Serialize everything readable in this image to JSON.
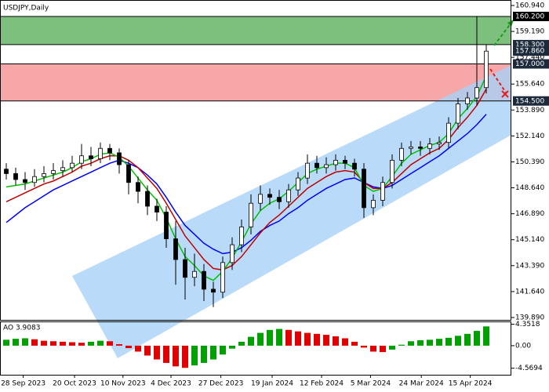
{
  "chart_data": [
    {
      "type": "candlestick",
      "title": "USDJPY,Daily",
      "categories": [
        null,
        null,
        null,
        null,
        null,
        null,
        null,
        null,
        null,
        null,
        null,
        null,
        null,
        null,
        null,
        null,
        null,
        null,
        null,
        null,
        null,
        null,
        null,
        null,
        null,
        null,
        null,
        null,
        null,
        null,
        null,
        null,
        null,
        null,
        null,
        null,
        null,
        null,
        null,
        null,
        null,
        null,
        null,
        null,
        null,
        null,
        null,
        null,
        null,
        null,
        null,
        null
      ],
      "open": [
        149.9,
        149.6,
        149.2,
        149.0,
        149.4,
        149.6,
        149.8,
        150.0,
        150.3,
        150.8,
        150.6,
        151.3,
        151.0,
        150.2,
        149.0,
        148.4,
        147.4,
        147.0,
        145.2,
        143.8,
        142.6,
        143.0,
        141.8,
        141.6,
        143.6,
        144.8,
        146.0,
        147.6,
        148.2,
        148.0,
        147.7,
        148.5,
        149.3,
        150.3,
        150.0,
        150.2,
        150.5,
        150.3,
        149.9,
        147.3,
        147.8,
        149.0,
        150.5,
        151.3,
        151.4,
        151.3,
        151.6,
        151.7,
        153.0,
        154.3,
        154.7,
        155.4
      ],
      "high": [
        150.3,
        150.0,
        149.7,
        149.9,
        150.1,
        150.3,
        150.5,
        150.8,
        151.6,
        151.4,
        151.7,
        151.6,
        151.3,
        150.5,
        149.4,
        148.8,
        147.9,
        147.4,
        146.4,
        144.6,
        144.2,
        143.5,
        142.3,
        144.0,
        145.3,
        146.5,
        148.2,
        148.8,
        148.6,
        148.5,
        148.9,
        149.7,
        150.9,
        150.8,
        150.7,
        150.9,
        150.8,
        150.6,
        150.3,
        148.2,
        149.4,
        150.9,
        151.7,
        151.8,
        151.8,
        152.0,
        152.1,
        153.4,
        154.7,
        155.1,
        160.2,
        158.3
      ],
      "low": [
        149.2,
        148.8,
        148.5,
        148.7,
        149.0,
        149.2,
        149.4,
        149.7,
        149.9,
        150.1,
        150.3,
        150.5,
        149.6,
        148.2,
        147.6,
        146.8,
        146.4,
        144.6,
        142.1,
        141.1,
        142.0,
        141.0,
        140.6,
        141.2,
        143.1,
        144.3,
        145.5,
        147.1,
        147.5,
        147.2,
        147.3,
        148.1,
        148.9,
        149.6,
        149.6,
        149.8,
        149.9,
        149.4,
        146.6,
        146.8,
        147.4,
        148.6,
        150.1,
        150.9,
        150.8,
        150.9,
        151.2,
        151.3,
        152.6,
        153.9,
        154.2,
        155.0
      ],
      "close": [
        149.6,
        149.2,
        149.0,
        149.4,
        149.6,
        149.8,
        150.0,
        150.3,
        150.8,
        150.6,
        151.3,
        151.0,
        150.2,
        149.0,
        148.4,
        147.4,
        147.0,
        145.2,
        143.8,
        142.6,
        143.0,
        141.8,
        141.6,
        143.6,
        144.8,
        146.0,
        147.6,
        148.2,
        148.0,
        147.7,
        148.5,
        149.3,
        150.3,
        150.0,
        150.2,
        150.5,
        150.3,
        149.9,
        147.3,
        147.8,
        149.0,
        150.5,
        151.3,
        151.4,
        151.3,
        151.6,
        151.7,
        153.0,
        154.3,
        154.7,
        155.4,
        157.86
      ],
      "up_color": "#ffffff",
      "down_color": "#000000",
      "series": [
        {
          "color": "#0000ff",
          "values": [
            146.3,
            146.8,
            147.3,
            147.7,
            148.1,
            148.5,
            148.8,
            149.1,
            149.4,
            149.7,
            150.0,
            150.3,
            150.5,
            150.3,
            150.0,
            149.5,
            148.9,
            148.0,
            147.0,
            146.1,
            145.5,
            144.9,
            144.5,
            144.2,
            144.3,
            144.6,
            145.1,
            145.7,
            146.1,
            146.4,
            146.9,
            147.3,
            147.8,
            148.2,
            148.6,
            148.9,
            149.2,
            149.3,
            149.0,
            148.7,
            148.6,
            148.8,
            149.2,
            149.6,
            150.0,
            150.4,
            150.8,
            151.3,
            151.8,
            152.3,
            152.9,
            153.6
          ]
        },
        {
          "color": "#c00000",
          "values": [
            147.7,
            148.0,
            148.3,
            148.6,
            148.9,
            149.1,
            149.4,
            149.7,
            150.1,
            150.3,
            150.6,
            150.8,
            150.8,
            150.5,
            150.0,
            149.3,
            148.6,
            147.6,
            146.5,
            145.4,
            144.6,
            143.8,
            143.2,
            143.1,
            143.4,
            144.0,
            144.8,
            145.6,
            146.3,
            146.8,
            147.4,
            148.0,
            148.6,
            149.0,
            149.4,
            149.7,
            149.8,
            149.7,
            149.0,
            148.6,
            148.6,
            149.0,
            149.6,
            150.2,
            150.6,
            151.0,
            151.3,
            151.9,
            152.7,
            153.4,
            154.2,
            155.3
          ]
        },
        {
          "color": "#00c000",
          "values": [
            148.7,
            148.8,
            148.9,
            149.1,
            149.3,
            149.5,
            149.7,
            150.0,
            150.4,
            150.6,
            150.9,
            151.0,
            150.7,
            150.1,
            149.3,
            148.5,
            147.8,
            146.6,
            145.2,
            144.0,
            143.4,
            142.7,
            142.4,
            143.0,
            143.9,
            145.0,
            146.2,
            147.1,
            147.6,
            147.9,
            148.4,
            149.0,
            149.6,
            149.9,
            150.1,
            150.3,
            150.3,
            150.0,
            148.8,
            148.4,
            148.6,
            149.4,
            150.3,
            150.9,
            151.2,
            151.5,
            151.7,
            152.3,
            153.3,
            154.0,
            154.8,
            156.2
          ]
        }
      ],
      "ylim": [
        139.89,
        160.94
      ],
      "yticks": [
        {
          "value": 160.94,
          "label": "160.940"
        },
        {
          "value": 159.19,
          "label": "159.190"
        },
        {
          "value": 157.44,
          "label": "157.440"
        },
        {
          "value": 155.64,
          "label": "155.640"
        },
        {
          "value": 153.89,
          "label": "153.890"
        },
        {
          "value": 152.14,
          "label": "152.140"
        },
        {
          "value": 150.39,
          "label": "150.390"
        },
        {
          "value": 148.64,
          "label": "148.640"
        },
        {
          "value": 146.89,
          "label": "146.890"
        },
        {
          "value": 145.14,
          "label": "145.140"
        },
        {
          "value": 143.39,
          "label": "143.390"
        },
        {
          "value": 141.64,
          "label": "141.640"
        },
        {
          "value": 139.89,
          "label": "139.890"
        }
      ],
      "xticks": [
        {
          "value": 1.8,
          "label": "28 Sep 2023"
        },
        {
          "value": 7.25,
          "label": "20 Oct 2023"
        },
        {
          "value": 12.4,
          "label": "10 Nov 2023"
        },
        {
          "value": 17.5,
          "label": "4 Dec 2023"
        },
        {
          "value": 22.8,
          "label": "27 Dec 2023"
        },
        {
          "value": 28.25,
          "label": "19 Jan 2024"
        },
        {
          "value": 33.5,
          "label": "12 Feb 2024"
        },
        {
          "value": 38.7,
          "label": "5 Mar 2024"
        },
        {
          "value": 44.1,
          "label": "24 Mar 2024"
        },
        {
          "value": 49.3,
          "label": "15 Apr 2024"
        }
      ],
      "zones": [
        {
          "from": 158.3,
          "to": 160.2,
          "color": "#7dbf7d"
        },
        {
          "from": 154.5,
          "to": 157.0,
          "color": "#f7a7a7"
        }
      ],
      "levels": [
        {
          "value": 160.2,
          "label": "160.200"
        },
        {
          "value": 158.3,
          "label": "158.300"
        },
        {
          "value": 157.86,
          "label": "157.860"
        },
        {
          "value": 157.0,
          "label": "157.000"
        },
        {
          "value": 154.5,
          "label": "154.500"
        }
      ]
    },
    {
      "type": "histogram",
      "title": "AO 3.9083",
      "values": [
        1.2,
        1.4,
        1.5,
        1.3,
        1.0,
        0.9,
        0.8,
        0.7,
        0.6,
        0.8,
        1.0,
        0.9,
        0.3,
        -0.5,
        -1.2,
        -2.0,
        -2.8,
        -3.5,
        -4.2,
        -4.5,
        -4.0,
        -3.5,
        -2.8,
        -1.8,
        -0.6,
        0.8,
        1.8,
        2.6,
        3.2,
        3.4,
        3.2,
        2.9,
        2.6,
        2.4,
        2.2,
        1.9,
        1.5,
        0.8,
        -0.4,
        -1.2,
        -1.3,
        -0.8,
        0.2,
        0.9,
        1.1,
        1.2,
        1.4,
        1.6,
        2.0,
        2.4,
        3.0,
        3.9083
      ],
      "up_color": "#00a000",
      "down_color": "#e00000",
      "ylim": [
        -5.9,
        4.6
      ],
      "yticks": [
        {
          "value": 4.3518,
          "label": "4.3518"
        },
        {
          "value": 0,
          "label": "0.00"
        },
        {
          "value": -4.5694,
          "label": "-4.5694"
        }
      ]
    }
  ]
}
